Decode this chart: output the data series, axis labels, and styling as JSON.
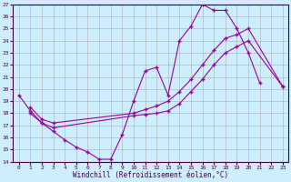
{
  "xlabel": "Windchill (Refroidissement éolien,°C)",
  "bg_color": "#cceeff",
  "line_color": "#990099",
  "grid_color": "#aaaaaa",
  "xlim": [
    -0.5,
    23.5
  ],
  "ylim": [
    14,
    27
  ],
  "xticks": [
    0,
    1,
    2,
    3,
    4,
    5,
    6,
    7,
    8,
    9,
    10,
    11,
    12,
    13,
    14,
    15,
    16,
    17,
    18,
    19,
    20,
    21,
    22,
    23
  ],
  "yticks": [
    14,
    15,
    16,
    17,
    18,
    19,
    20,
    21,
    22,
    23,
    24,
    25,
    26,
    27
  ],
  "line1_x": [
    0,
    1,
    2,
    3,
    4,
    5,
    6,
    7,
    8,
    9,
    10,
    11,
    12,
    13,
    14,
    15,
    16,
    17,
    18,
    19,
    20,
    21
  ],
  "line1_y": [
    19.5,
    18.2,
    17.2,
    16.5,
    15.8,
    15.2,
    14.8,
    14.2,
    14.2,
    16.2,
    19.0,
    21.5,
    21.8,
    19.5,
    24.0,
    25.2,
    27.0,
    26.5,
    26.5,
    25.0,
    23.0,
    20.5
  ],
  "line2_x": [
    1,
    2,
    3,
    10,
    11,
    12,
    13,
    14,
    15,
    16,
    17,
    18,
    19,
    20,
    23
  ],
  "line2_y": [
    18.5,
    17.5,
    17.2,
    18.0,
    18.3,
    18.6,
    19.0,
    19.8,
    20.8,
    22.0,
    23.2,
    24.2,
    24.5,
    25.0,
    20.2
  ],
  "line3_x": [
    1,
    2,
    3,
    10,
    11,
    12,
    13,
    14,
    15,
    16,
    17,
    18,
    19,
    20,
    23
  ],
  "line3_y": [
    18.0,
    17.2,
    16.8,
    17.8,
    17.9,
    18.0,
    18.2,
    18.8,
    19.8,
    20.8,
    22.0,
    23.0,
    23.5,
    24.0,
    20.2
  ]
}
